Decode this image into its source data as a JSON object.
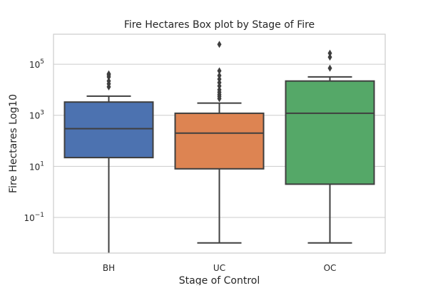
{
  "chart_data": {
    "type": "box",
    "title": "Fire Hectares Box plot by Stage of Fire",
    "xlabel": "Stage of Control",
    "ylabel": "Fire Hectares Log10",
    "y_scale": "log10",
    "ylim": [
      0.004,
      1500000
    ],
    "grid": "horizontal",
    "categories": [
      "BH",
      "UC",
      "OC"
    ],
    "y_ticks": [
      {
        "value": 0.1,
        "base": "10",
        "exp": "−1"
      },
      {
        "value": 10,
        "base": "10",
        "exp": "1"
      },
      {
        "value": 1000,
        "base": "10",
        "exp": "3"
      },
      {
        "value": 100000,
        "base": "10",
        "exp": "5"
      }
    ],
    "boxes": [
      {
        "category": "BH",
        "color": "#4c72b0",
        "whisker_low": 0.004,
        "q1": 22,
        "median": 300,
        "q3": 3300,
        "whisker_high": 5600,
        "outliers": [
          13000,
          17000,
          22000,
          32000,
          38000,
          42000
        ]
      },
      {
        "category": "UC",
        "color": "#dd8452",
        "whisker_low": 0.01,
        "q1": 8,
        "median": 200,
        "q3": 1200,
        "whisker_high": 3000,
        "outliers": [
          4500,
          5500,
          6500,
          8000,
          10000,
          14000,
          19000,
          26000,
          36000,
          55000,
          600000
        ]
      },
      {
        "category": "OC",
        "color": "#55a868",
        "whisker_low": 0.01,
        "q1": 2,
        "median": 1200,
        "q3": 22000,
        "whisker_high": 32000,
        "outliers": [
          70000,
          190000,
          270000
        ]
      }
    ]
  }
}
